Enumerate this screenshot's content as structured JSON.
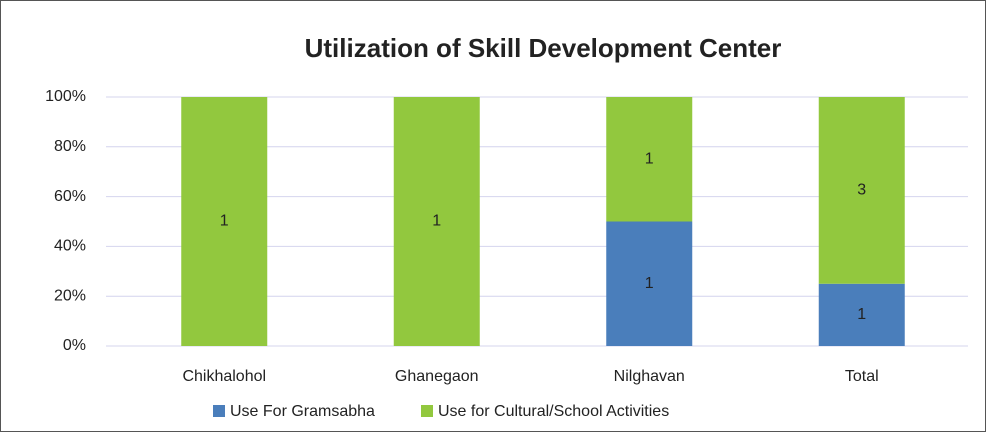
{
  "chart_data": {
    "type": "bar",
    "stack": "percent",
    "title": "Utilization of Skill Development Center",
    "categories": [
      "Chikhalohol",
      "Ghanegaon",
      "Nilghavan",
      "Total"
    ],
    "series": [
      {
        "name": "Use For Gramsabha",
        "color": "#4a7ebb",
        "values": [
          0,
          0,
          1,
          1
        ]
      },
      {
        "name": "Use for Cultural/School Activities",
        "color": "#92c83e",
        "values": [
          1,
          1,
          1,
          3
        ]
      }
    ],
    "ylim": [
      0,
      100
    ],
    "yticks": [
      {
        "value": 0,
        "label": "0%"
      },
      {
        "value": 20,
        "label": "20%"
      },
      {
        "value": 40,
        "label": "40%"
      },
      {
        "value": 60,
        "label": "60%"
      },
      {
        "value": 80,
        "label": "80%"
      },
      {
        "value": 100,
        "label": "100%"
      }
    ],
    "grid": true,
    "legend": "bottom"
  }
}
